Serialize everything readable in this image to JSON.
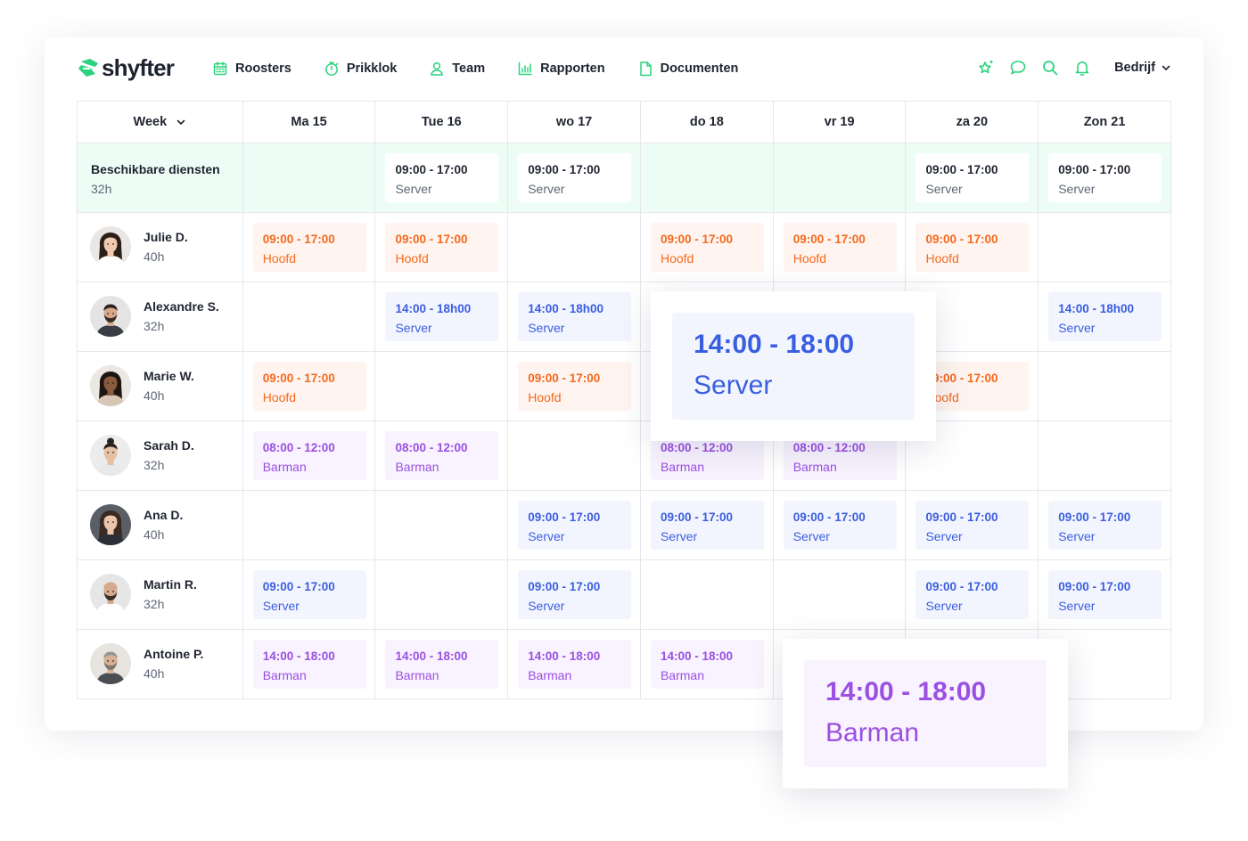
{
  "brand": {
    "name": "shyfter",
    "color": "#2bd37e"
  },
  "nav": {
    "items": [
      {
        "label": "Roosters",
        "icon": "calendar-icon"
      },
      {
        "label": "Prikklok",
        "icon": "stopwatch-icon"
      },
      {
        "label": "Team",
        "icon": "user-icon"
      },
      {
        "label": "Rapporten",
        "icon": "bar-chart-icon"
      },
      {
        "label": "Documenten",
        "icon": "document-icon"
      }
    ],
    "right_icons": [
      "sparkle-star-icon",
      "chat-bubble-icon",
      "search-icon",
      "bell-icon"
    ],
    "company": "Bedrijf"
  },
  "grid": {
    "week_label": "Week",
    "days": [
      "Ma 15",
      "Tue 16",
      "wo 17",
      "do 18",
      "vr 19",
      "za 20",
      "Zon 21"
    ],
    "available": {
      "title": "Beschikbare diensten",
      "hours": "32h",
      "shifts": [
        null,
        {
          "time": "09:00 - 17:00",
          "role": "Server"
        },
        {
          "time": "09:00 - 17:00",
          "role": "Server"
        },
        null,
        null,
        {
          "time": "09:00 - 17:00",
          "role": "Server"
        },
        {
          "time": "09:00 - 17:00",
          "role": "Server"
        }
      ]
    },
    "employees": [
      {
        "name": "Julie D.",
        "hours": "40h",
        "avatar": "woman-dark-hair-avatar",
        "shifts": [
          {
            "time": "09:00 - 17:00",
            "role": "Hoofd",
            "color": "orange"
          },
          {
            "time": "09:00 - 17:00",
            "role": "Hoofd",
            "color": "orange"
          },
          null,
          {
            "time": "09:00 - 17:00",
            "role": "Hoofd",
            "color": "orange"
          },
          {
            "time": "09:00 - 17:00",
            "role": "Hoofd",
            "color": "orange"
          },
          {
            "time": "09:00 - 17:00",
            "role": "Hoofd",
            "color": "orange"
          },
          null
        ]
      },
      {
        "name": "Alexandre S.",
        "hours": "32h",
        "avatar": "man-beard-avatar",
        "shifts": [
          null,
          {
            "time": "14:00 - 18h00",
            "role": "Server",
            "color": "blue"
          },
          {
            "time": "14:00 - 18h00",
            "role": "Server",
            "color": "blue"
          },
          null,
          null,
          null,
          {
            "time": "14:00 - 18h00",
            "role": "Server",
            "color": "blue"
          }
        ]
      },
      {
        "name": "Marie W.",
        "hours": "40h",
        "avatar": "woman-curly-hair-avatar",
        "shifts": [
          {
            "time": "09:00 - 17:00",
            "role": "Hoofd",
            "color": "orange"
          },
          null,
          {
            "time": "09:00 - 17:00",
            "role": "Hoofd",
            "color": "orange"
          },
          null,
          null,
          {
            "time": "09:00 - 17:00",
            "role": "Hoofd",
            "color": "orange"
          },
          null
        ]
      },
      {
        "name": "Sarah D.",
        "hours": "32h",
        "avatar": "woman-bun-avatar",
        "shifts": [
          {
            "time": "08:00 - 12:00",
            "role": "Barman",
            "color": "purple"
          },
          {
            "time": "08:00 - 12:00",
            "role": "Barman",
            "color": "purple"
          },
          null,
          {
            "time": "08:00 - 12:00",
            "role": "Barman",
            "color": "purple"
          },
          {
            "time": "08:00 - 12:00",
            "role": "Barman",
            "color": "purple"
          },
          null,
          null
        ]
      },
      {
        "name": "Ana D.",
        "hours": "40h",
        "avatar": "woman-long-hair-avatar",
        "shifts": [
          null,
          null,
          {
            "time": "09:00 - 17:00",
            "role": "Server",
            "color": "blue"
          },
          {
            "time": "09:00 - 17:00",
            "role": "Server",
            "color": "blue"
          },
          {
            "time": "09:00 - 17:00",
            "role": "Server",
            "color": "blue"
          },
          {
            "time": "09:00 - 17:00",
            "role": "Server",
            "color": "blue"
          },
          {
            "time": "09:00 - 17:00",
            "role": "Server",
            "color": "blue"
          }
        ]
      },
      {
        "name": "Martin R.",
        "hours": "32h",
        "avatar": "man-bald-avatar",
        "shifts": [
          {
            "time": "09:00 - 17:00",
            "role": "Server",
            "color": "blue"
          },
          null,
          {
            "time": "09:00 - 17:00",
            "role": "Server",
            "color": "blue"
          },
          null,
          null,
          {
            "time": "09:00 - 17:00",
            "role": "Server",
            "color": "blue"
          },
          {
            "time": "09:00 - 17:00",
            "role": "Server",
            "color": "blue"
          }
        ]
      },
      {
        "name": "Antoine P.",
        "hours": "40h",
        "avatar": "man-grey-hair-avatar",
        "shifts": [
          {
            "time": "14:00 - 18:00",
            "role": "Barman",
            "color": "purple"
          },
          {
            "time": "14:00 - 18:00",
            "role": "Barman",
            "color": "purple"
          },
          {
            "time": "14:00 - 18:00",
            "role": "Barman",
            "color": "purple"
          },
          {
            "time": "14:00 - 18:00",
            "role": "Barman",
            "color": "purple"
          },
          null,
          null,
          null
        ]
      }
    ]
  },
  "popups": [
    {
      "time": "14:00 - 18:00",
      "role": "Server",
      "color": "blue"
    },
    {
      "time": "14:00 - 18:00",
      "role": "Barman",
      "color": "purple"
    }
  ],
  "colors": {
    "orange": "#f4691e",
    "blue": "#3a5ee0",
    "purple": "#9b4fe3",
    "available_bg": "#edfdf6"
  }
}
